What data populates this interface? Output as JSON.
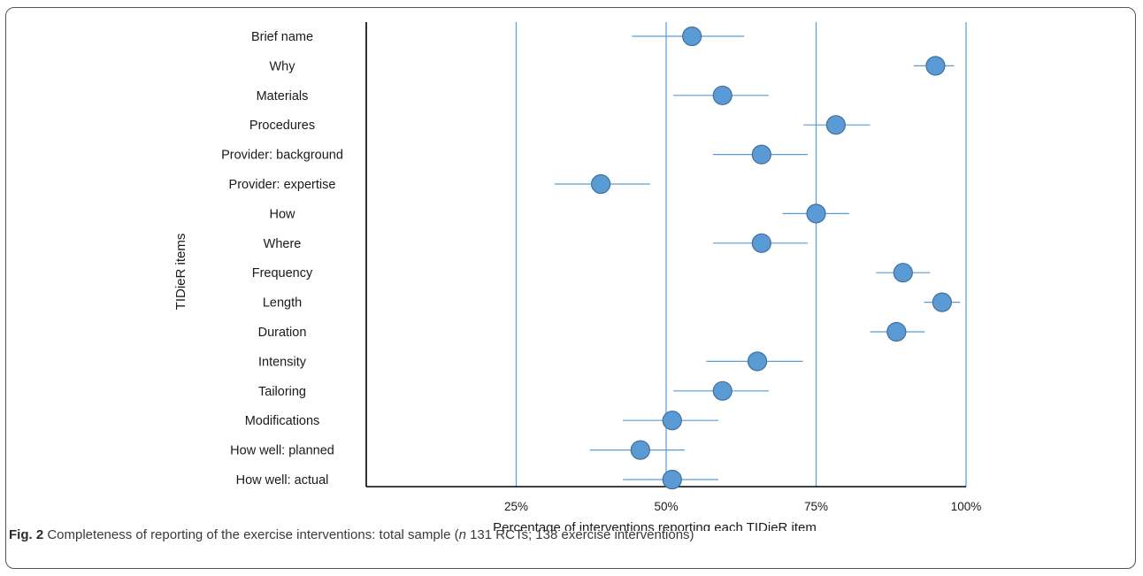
{
  "caption": {
    "fig_label": "Fig. 2",
    "text_before": " Completeness of reporting of the exercise interventions: total sample (",
    "n_symbol": "n",
    "text_after": " 131 RCTs; 138 exercise interventions)"
  },
  "colors": {
    "marker_fill": "#5b9bd5",
    "marker_stroke": "#3f6f9f",
    "errorbar": "#5b9bd5",
    "gridline": "#5b9bd5",
    "axis": "#000000"
  },
  "chart_data": {
    "type": "scatter",
    "title": "",
    "xlabel": "Percentage of interventions reporting each TIDieR item",
    "ylabel": "TIDieR items",
    "xlim": [
      0,
      100
    ],
    "xticks": [
      25,
      50,
      75,
      100
    ],
    "xtick_labels": [
      "25%",
      "50%",
      "75%",
      "100%"
    ],
    "vertical_gridlines": [
      25,
      50,
      75,
      100
    ],
    "categories": [
      "Brief name",
      "Why",
      "Materials",
      "Procedures",
      "Provider: background",
      "Provider: expertise",
      "How",
      "Where",
      "Frequency",
      "Length",
      "Duration",
      "Intensity",
      "Tailoring",
      "Modifications",
      "How well: planned",
      "How well: actual"
    ],
    "values": [
      54.3,
      94.9,
      59.4,
      78.3,
      65.9,
      39.1,
      75.0,
      65.9,
      89.5,
      96.0,
      88.4,
      65.2,
      59.4,
      51.0,
      45.7,
      51.0
    ],
    "ci_lower": [
      44.3,
      91.3,
      51.2,
      72.9,
      57.8,
      31.4,
      69.4,
      57.8,
      85.0,
      93.0,
      84.0,
      56.7,
      51.2,
      42.8,
      37.3,
      42.8
    ],
    "ci_upper": [
      63.0,
      98.0,
      67.1,
      84.0,
      73.6,
      47.3,
      80.5,
      73.6,
      94.0,
      99.0,
      93.1,
      72.8,
      67.1,
      58.7,
      53.1,
      58.7
    ]
  }
}
